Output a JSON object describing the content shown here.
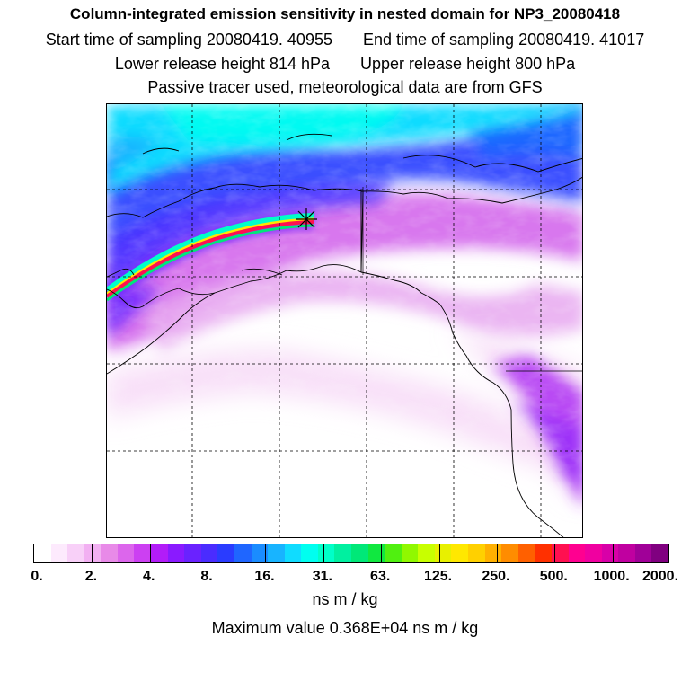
{
  "titles": {
    "main": "Column-integrated emission sensitivity in nested domain for NP3_20080418",
    "start": "Start time of sampling 20080419. 40955",
    "end": "End time of sampling 20080419. 41017",
    "lower": "Lower release height  814 hPa",
    "upper": "Upper release height  800 hPa",
    "note": "Passive tracer used, meteorological data are from GFS"
  },
  "colorbar": {
    "labels": [
      "0.",
      "2.",
      "4.",
      "8.",
      "16.",
      "31.",
      "63.",
      "125.",
      "250.",
      "500.",
      "1000.",
      "2000."
    ],
    "colors": [
      "#ffffff",
      "#fdeafd",
      "#f8d0f8",
      "#f2b0f2",
      "#e88ae8",
      "#dc66ec",
      "#cc40f2",
      "#b21cf8",
      "#8a1aff",
      "#6a22ff",
      "#4a2cff",
      "#2a3cff",
      "#1f66ff",
      "#1a8cff",
      "#18b4ff",
      "#10dcff",
      "#00fff0",
      "#00ffc8",
      "#00f0a0",
      "#00e878",
      "#10e840",
      "#50f010",
      "#90f800",
      "#c8ff00",
      "#e8f000",
      "#ffe800",
      "#ffd000",
      "#ffb000",
      "#ff8c00",
      "#ff6000",
      "#ff3000",
      "#ff1050",
      "#ff0090",
      "#f000a0",
      "#d800a8",
      "#c000a0",
      "#a00098",
      "#800080"
    ],
    "units": "ns m / kg"
  },
  "max_value_text": "Maximum value  0.368E+04 ns m / kg"
}
